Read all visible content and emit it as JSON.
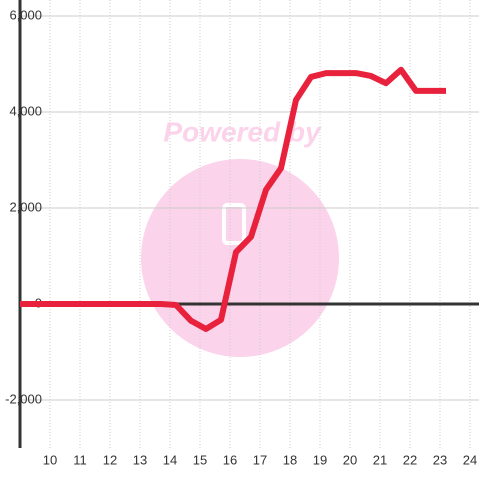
{
  "chart_data": {
    "type": "line",
    "annotations": [
      "Powered by"
    ],
    "x": [
      9,
      13.7,
      14.2,
      14.7,
      15.2,
      15.7,
      16.2,
      16.7,
      17.2,
      17.7,
      18.2,
      18.7,
      19.2,
      19.7,
      20.2,
      20.7,
      21.2,
      21.7,
      22.2,
      22.7,
      23.2
    ],
    "series": [
      {
        "color": "#e8223c",
        "values": [
          0,
          0,
          -20,
          -350,
          -520,
          -330,
          1080,
          1400,
          2380,
          2830,
          4250,
          4730,
          4810,
          4810,
          4810,
          4750,
          4600,
          4880,
          4440,
          4440,
          4440
        ]
      }
    ],
    "xlim": [
      9,
      24.3
    ],
    "xticks": [
      10,
      11,
      12,
      13,
      14,
      15,
      16,
      17,
      18,
      19,
      20,
      21,
      22,
      23,
      24
    ],
    "ylim": [
      -3000,
      6333
    ],
    "yticks": [
      {
        "value": -2000,
        "label": "-2,000"
      },
      0,
      {
        "value": 2000,
        "label": "2,000"
      },
      {
        "value": 4000,
        "label": "4,000"
      },
      {
        "value": 6000,
        "label": "6,000"
      }
    ],
    "grid": true
  }
}
